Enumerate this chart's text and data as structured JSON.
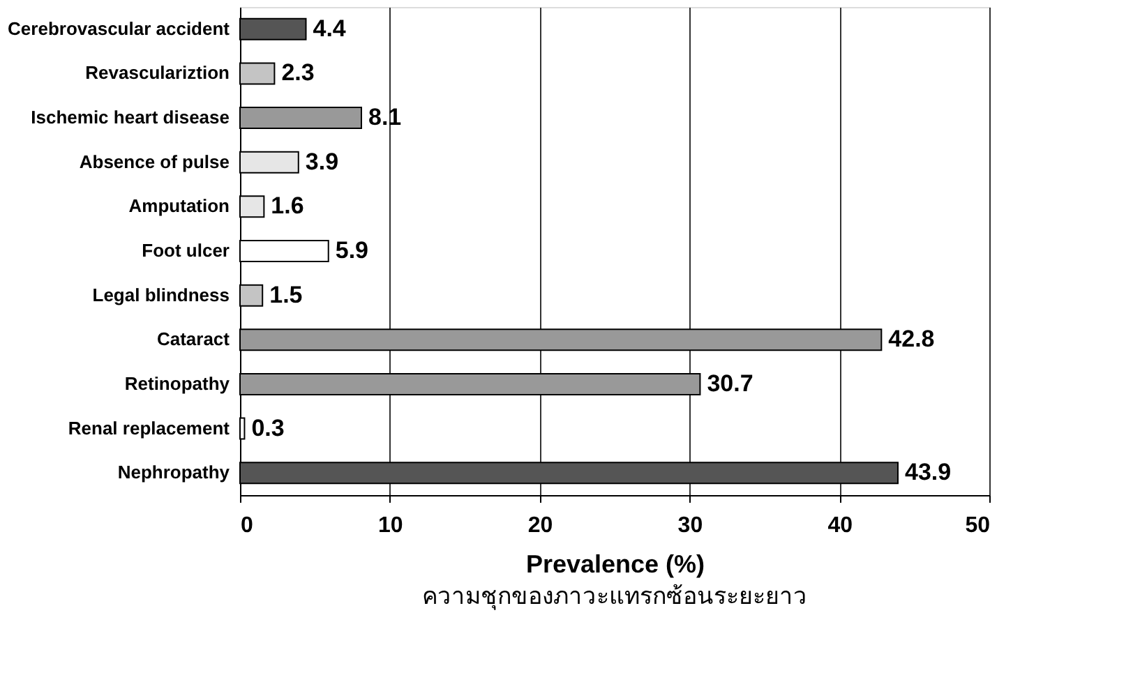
{
  "chart_data": {
    "type": "bar",
    "orientation": "horizontal",
    "categories": [
      "Cerebrovascular accident",
      "Revasculariztion",
      "Ischemic heart disease",
      "Absence of pulse",
      "Amputation",
      "Foot ulcer",
      "Legal blindness",
      "Cataract",
      "Retinopathy",
      "Renal replacement",
      "Nephropathy"
    ],
    "values": [
      4.4,
      2.3,
      8.1,
      3.9,
      1.6,
      5.9,
      1.5,
      42.8,
      30.7,
      0.3,
      43.9
    ],
    "colors": [
      "#555555",
      "#c4c4c4",
      "#999999",
      "#e6e6e6",
      "#e6e6e6",
      "#ffffff",
      "#c4c4c4",
      "#999999",
      "#999999",
      "#ffffff",
      "#555555"
    ],
    "xlim": [
      0,
      50
    ],
    "xticks": [
      0,
      10,
      20,
      30,
      40,
      50
    ],
    "grid": "x",
    "data_labels": true,
    "xlabel": "Prevalence (%)",
    "annotations": [
      "ความชุกของภาวะแทรกซ้อนระยะยาว"
    ]
  }
}
